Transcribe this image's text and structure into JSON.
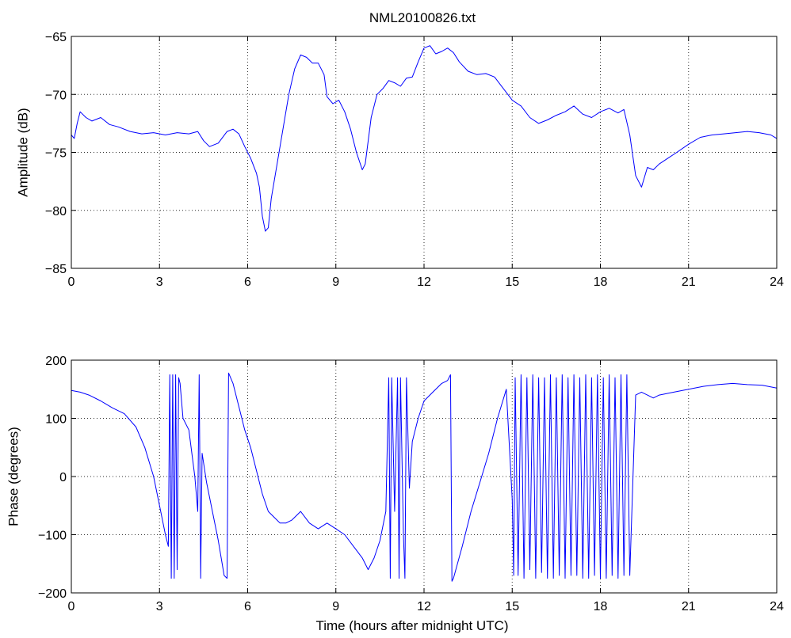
{
  "chart_data": [
    {
      "type": "line",
      "title": "NML20100826.txt",
      "xlabel": "",
      "ylabel": "Amplitude (dB)",
      "xlim": [
        0,
        24
      ],
      "ylim": [
        -85,
        -65
      ],
      "xticks": [
        0,
        3,
        6,
        9,
        12,
        15,
        18,
        21,
        24
      ],
      "yticks": [
        -85,
        -80,
        -75,
        -70,
        -65
      ],
      "grid": true,
      "line_color": "#0000ff",
      "series": [
        {
          "x": [
            0,
            0.1,
            0.2,
            0.3,
            0.5,
            0.7,
            1.0,
            1.3,
            1.6,
            2.0,
            2.4,
            2.8,
            3.2,
            3.6,
            4.0,
            4.3,
            4.5,
            4.7,
            5.0,
            5.3,
            5.5,
            5.7,
            5.9,
            6.1,
            6.3,
            6.4,
            6.5,
            6.6,
            6.7,
            6.8,
            7.0,
            7.2,
            7.4,
            7.6,
            7.8,
            8.0,
            8.2,
            8.4,
            8.6,
            8.7,
            8.9,
            9.1,
            9.3,
            9.5,
            9.7,
            9.9,
            10.0,
            10.2,
            10.4,
            10.6,
            10.8,
            11.0,
            11.2,
            11.4,
            11.6,
            11.8,
            12.0,
            12.2,
            12.4,
            12.6,
            12.8,
            13.0,
            13.2,
            13.5,
            13.8,
            14.1,
            14.4,
            14.7,
            15.0,
            15.3,
            15.6,
            15.9,
            16.2,
            16.5,
            16.8,
            17.1,
            17.4,
            17.7,
            18.0,
            18.3,
            18.6,
            18.8,
            19.0,
            19.2,
            19.4,
            19.6,
            19.8,
            20.0,
            20.3,
            20.6,
            21.0,
            21.4,
            21.8,
            22.2,
            22.6,
            23.0,
            23.4,
            23.8,
            24.0
          ],
          "values": [
            -73.5,
            -73.8,
            -72.5,
            -71.5,
            -72.0,
            -72.3,
            -72.0,
            -72.6,
            -72.8,
            -73.2,
            -73.4,
            -73.3,
            -73.5,
            -73.3,
            -73.4,
            -73.2,
            -74.0,
            -74.5,
            -74.2,
            -73.2,
            -73.0,
            -73.4,
            -74.5,
            -75.5,
            -76.8,
            -78.0,
            -80.5,
            -81.8,
            -81.5,
            -79.0,
            -76.0,
            -73.0,
            -70.0,
            -67.8,
            -66.6,
            -66.8,
            -67.3,
            -67.3,
            -68.3,
            -70.2,
            -70.8,
            -70.5,
            -71.5,
            -73.0,
            -75.0,
            -76.5,
            -76.0,
            -72.0,
            -70.0,
            -69.5,
            -68.8,
            -69.0,
            -69.3,
            -68.6,
            -68.5,
            -67.2,
            -66.0,
            -65.8,
            -66.5,
            -66.3,
            -66.0,
            -66.4,
            -67.2,
            -68.0,
            -68.3,
            -68.2,
            -68.5,
            -69.5,
            -70.5,
            -71.0,
            -72.0,
            -72.5,
            -72.2,
            -71.8,
            -71.5,
            -71.0,
            -71.7,
            -72.0,
            -71.5,
            -71.2,
            -71.6,
            -71.3,
            -73.5,
            -77.0,
            -78.0,
            -76.3,
            -76.5,
            -76.0,
            -75.5,
            -75.0,
            -74.3,
            -73.7,
            -73.5,
            -73.4,
            -73.3,
            -73.2,
            -73.3,
            -73.5,
            -73.8
          ]
        }
      ]
    },
    {
      "type": "line",
      "title": "",
      "xlabel": "Time (hours after midnight UTC)",
      "ylabel": "Phase (degrees)",
      "xlim": [
        0,
        24
      ],
      "ylim": [
        -200,
        200
      ],
      "xticks": [
        0,
        3,
        6,
        9,
        12,
        15,
        18,
        21,
        24
      ],
      "yticks": [
        -200,
        -100,
        0,
        100,
        200
      ],
      "grid": true,
      "line_color": "#0000ff",
      "series": [
        {
          "x": [
            0,
            0.3,
            0.6,
            1.0,
            1.4,
            1.8,
            2.2,
            2.5,
            2.8,
            3.0,
            3.2,
            3.3,
            3.35,
            3.4,
            3.45,
            3.5,
            3.55,
            3.6,
            3.65,
            3.7,
            3.8,
            4.0,
            4.2,
            4.3,
            4.35,
            4.4,
            4.45,
            4.6,
            4.8,
            5.0,
            5.2,
            5.3,
            5.35,
            5.5,
            5.7,
            5.9,
            6.1,
            6.3,
            6.5,
            6.7,
            6.9,
            7.1,
            7.3,
            7.5,
            7.8,
            8.1,
            8.4,
            8.7,
            9.0,
            9.3,
            9.6,
            9.9,
            10.1,
            10.3,
            10.5,
            10.7,
            10.8,
            10.85,
            10.9,
            11.0,
            11.1,
            11.15,
            11.2,
            11.3,
            11.35,
            11.4,
            11.5,
            11.6,
            11.8,
            12.0,
            12.3,
            12.6,
            12.8,
            12.9,
            12.95,
            13.0,
            13.3,
            13.6,
            13.9,
            14.2,
            14.5,
            14.8,
            15.0,
            15.05,
            15.1,
            15.2,
            15.3,
            15.4,
            15.5,
            15.6,
            15.7,
            15.8,
            15.9,
            16.0,
            16.1,
            16.2,
            16.3,
            16.4,
            16.5,
            16.6,
            16.7,
            16.8,
            16.9,
            17.0,
            17.1,
            17.2,
            17.3,
            17.4,
            17.5,
            17.6,
            17.7,
            17.8,
            17.9,
            18.0,
            18.1,
            18.2,
            18.3,
            18.4,
            18.5,
            18.6,
            18.7,
            18.8,
            18.9,
            19.0,
            19.2,
            19.4,
            19.6,
            19.8,
            20.0,
            20.5,
            21.0,
            21.5,
            22.0,
            22.5,
            23.0,
            23.5,
            24.0
          ],
          "values": [
            148,
            145,
            140,
            130,
            118,
            108,
            85,
            50,
            0,
            -50,
            -100,
            -120,
            175,
            -175,
            175,
            -175,
            175,
            -160,
            170,
            160,
            100,
            80,
            0,
            -60,
            175,
            -175,
            40,
            -10,
            -60,
            -110,
            -170,
            -175,
            178,
            160,
            120,
            80,
            50,
            10,
            -30,
            -60,
            -70,
            -80,
            -80,
            -75,
            -60,
            -80,
            -90,
            -80,
            -90,
            -100,
            -120,
            -140,
            -160,
            -140,
            -110,
            -60,
            170,
            -175,
            170,
            -60,
            170,
            -175,
            170,
            -100,
            -175,
            170,
            -20,
            60,
            100,
            130,
            145,
            160,
            165,
            175,
            -180,
            -175,
            -120,
            -60,
            -10,
            40,
            100,
            150,
            -40,
            -170,
            170,
            -170,
            175,
            -175,
            170,
            -160,
            175,
            -175,
            170,
            -165,
            170,
            -175,
            175,
            -175,
            170,
            -170,
            175,
            -175,
            170,
            -170,
            175,
            -170,
            170,
            -175,
            175,
            -175,
            170,
            -170,
            175,
            -175,
            170,
            -175,
            175,
            -170,
            170,
            -175,
            175,
            -170,
            175,
            -170,
            140,
            145,
            140,
            135,
            140,
            145,
            150,
            155,
            158,
            160,
            158,
            157,
            152
          ]
        }
      ]
    }
  ]
}
